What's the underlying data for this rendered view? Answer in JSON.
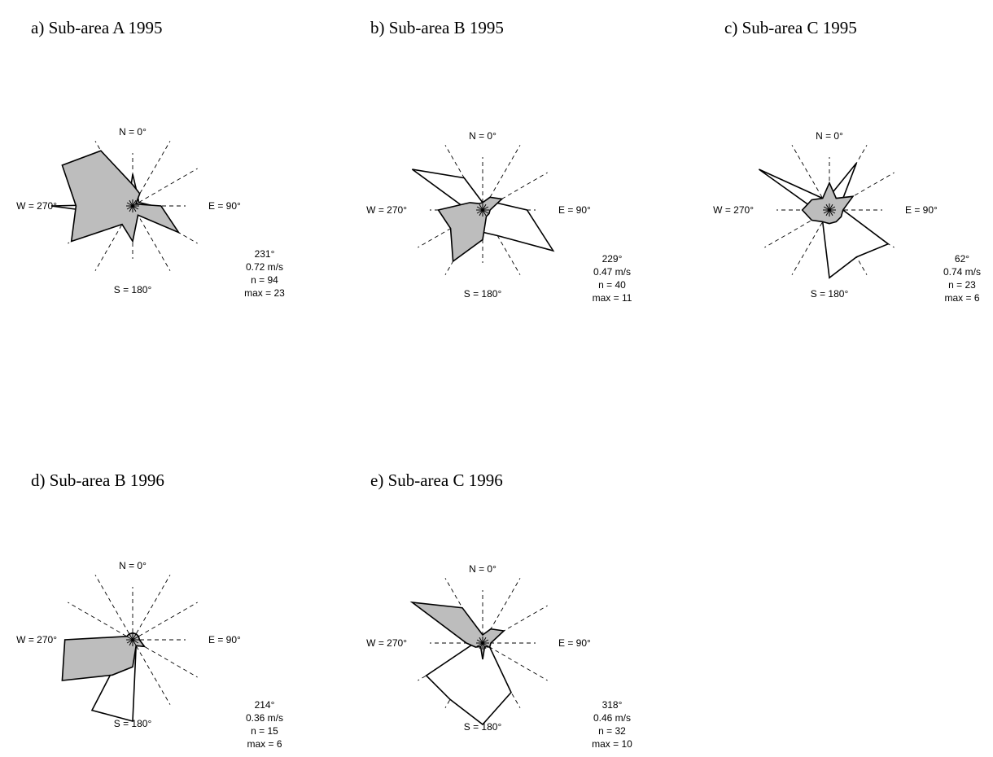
{
  "chart_data": [
    {
      "type": "rose",
      "title": "a) Sub-area A 1995",
      "direction_labels": {
        "n": "N = 0°",
        "e": "E = 90°",
        "s": "S = 180°",
        "w": "W = 270°"
      },
      "sectors_deg": [
        0,
        30,
        60,
        90,
        120,
        150,
        180,
        210,
        240,
        270,
        300,
        330
      ],
      "gridlines": true,
      "series": [
        {
          "values": [
            9,
            3,
            2,
            6,
            5,
            1,
            2,
            2,
            5,
            23,
            1,
            2
          ],
          "fill": "#ffffff"
        },
        {
          "values": [
            6,
            4,
            1,
            8,
            15,
            3,
            10,
            6,
            20,
            16,
            23,
            18
          ],
          "fill": "#bdbdbd"
        }
      ],
      "stats": [
        "231°",
        "0.72 m/s",
        "n = 94",
        "max = 23"
      ]
    },
    {
      "type": "rose",
      "title": "b) Sub-area B 1995",
      "direction_labels": {
        "n": "N = 0°",
        "e": "E = 90°",
        "s": "S = 180°",
        "w": "W = 270°"
      },
      "sectors_deg": [
        0,
        30,
        60,
        90,
        120,
        150,
        180,
        210,
        240,
        270,
        300,
        330
      ],
      "gridlines": true,
      "series": [
        {
          "values": [
            1,
            2,
            2,
            6,
            11,
            4,
            3,
            2,
            2,
            2,
            11,
            5
          ],
          "fill": "#ffffff"
        },
        {
          "values": [
            1,
            2,
            3,
            1,
            1,
            1,
            4,
            8,
            5,
            6,
            2,
            1
          ],
          "fill": "#bdbdbd"
        }
      ],
      "stats": [
        "229°",
        "0.47 m/s",
        "n = 40",
        "max = 11"
      ]
    },
    {
      "type": "rose",
      "title": "c) Sub-area C 1995",
      "direction_labels": {
        "n": "N = 0°",
        "e": "E = 90°",
        "s": "S = 180°",
        "w": "W = 270°"
      },
      "sectors_deg": [
        0,
        30,
        60,
        90,
        120,
        150,
        180,
        210,
        240,
        270,
        300,
        330
      ],
      "gridlines": true,
      "series": [
        {
          "values": [
            1,
            4,
            1,
            1,
            5,
            4,
            5,
            1,
            1,
            1,
            6,
            1
          ],
          "fill": "#ffffff"
        },
        {
          "values": [
            2,
            1,
            2,
            1,
            1,
            1,
            1,
            1,
            1.5,
            2,
            1.5,
            1
          ],
          "fill": "#bdbdbd"
        }
      ],
      "stats": [
        "62°",
        "0.74 m/s",
        "n = 23",
        "max = 6"
      ]
    },
    {
      "type": "rose",
      "title": "d) Sub-area B 1996",
      "direction_labels": {
        "n": "N = 0°",
        "e": "E = 90°",
        "s": "S = 180°",
        "w": "W = 270°"
      },
      "sectors_deg": [
        0,
        30,
        60,
        90,
        120,
        150,
        180,
        210,
        240,
        270,
        300,
        330
      ],
      "gridlines": true,
      "series": [
        {
          "values": [
            0.5,
            0.5,
            0.5,
            0.5,
            1,
            0.5,
            6,
            6,
            0.5,
            0.5,
            0.5,
            0.5
          ],
          "fill": "#ffffff"
        },
        {
          "values": [
            0.5,
            0.5,
            0.5,
            0.5,
            1,
            0.5,
            2,
            3,
            6,
            5,
            0.5,
            0.5
          ],
          "fill": "#bdbdbd"
        }
      ],
      "stats": [
        "214°",
        "0.36 m/s",
        "n = 15",
        "max = 6"
      ]
    },
    {
      "type": "rose",
      "title": "e) Sub-area C 1996",
      "direction_labels": {
        "n": "N = 0°",
        "e": "E = 90°",
        "s": "S = 180°",
        "w": "W = 270°"
      },
      "sectors_deg": [
        0,
        30,
        60,
        90,
        120,
        150,
        180,
        210,
        240,
        270,
        300,
        330
      ],
      "gridlines": true,
      "series": [
        {
          "values": [
            0.5,
            0.5,
            0.5,
            0.5,
            1,
            7,
            10,
            8,
            8,
            1,
            1,
            1
          ],
          "fill": "#ffffff"
        },
        {
          "values": [
            1,
            2,
            3,
            1,
            1,
            0.5,
            2,
            0.5,
            1,
            2,
            10,
            5
          ],
          "fill": "#bdbdbd"
        }
      ],
      "stats": [
        "318°",
        "0.46 m/s",
        "n = 32",
        "max = 10"
      ]
    }
  ]
}
